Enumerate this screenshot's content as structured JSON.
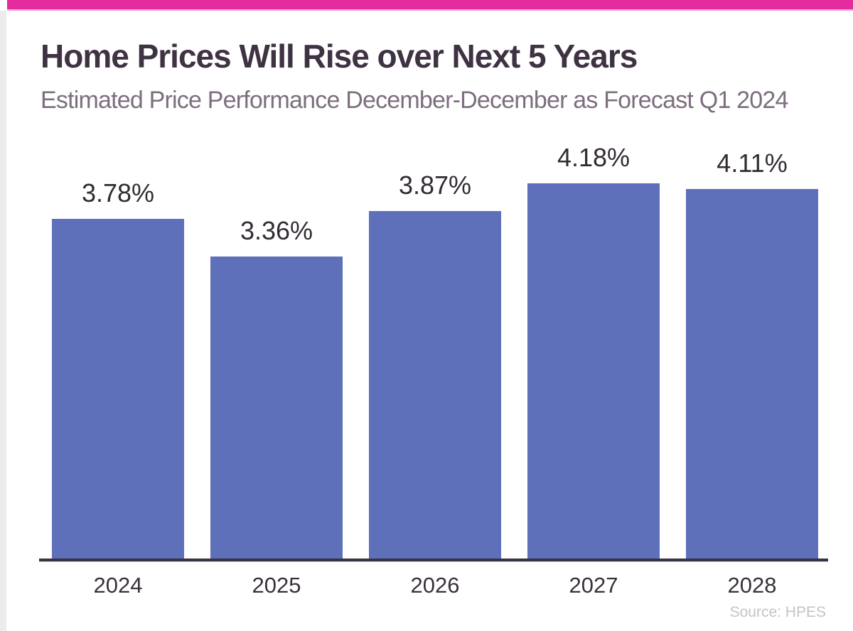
{
  "chart_data": {
    "type": "bar",
    "title": "Home Prices Will Rise over Next 5 Years",
    "subtitle": "Estimated Price Performance December-December as Forecast Q1 2024",
    "categories": [
      "2024",
      "2025",
      "2026",
      "2027",
      "2028"
    ],
    "values": [
      3.78,
      3.36,
      3.87,
      4.18,
      4.11
    ],
    "value_labels": [
      "3.78%",
      "3.36%",
      "3.87%",
      "4.18%",
      "4.11%"
    ],
    "xlabel": "",
    "ylabel": "",
    "ylim": [
      0,
      4.5
    ],
    "grid": false,
    "legend": false,
    "bar_color": "#5d70b9",
    "accent_color": "#e52b9d",
    "title_color": "#3e3243",
    "subtitle_color": "#7c6e7e",
    "axis_color": "#3a3142",
    "source": "Source: HPES"
  }
}
